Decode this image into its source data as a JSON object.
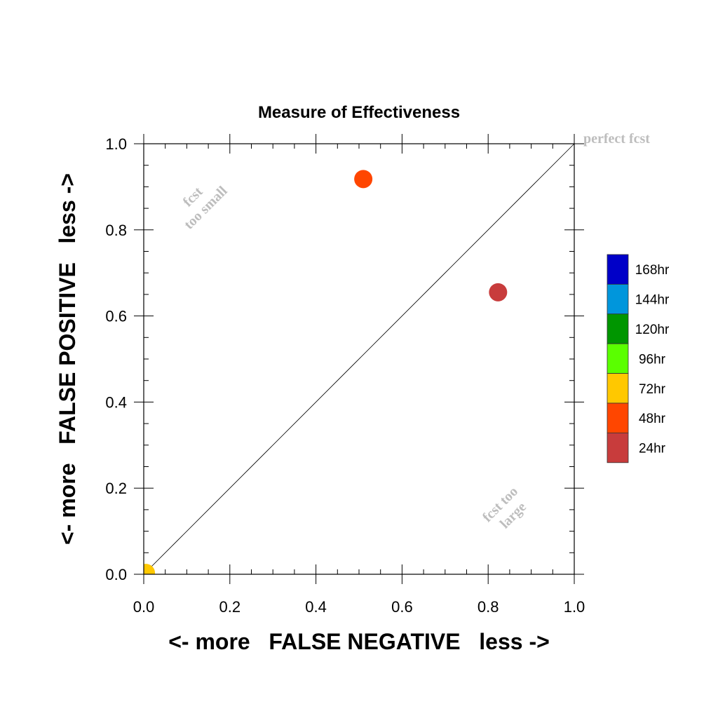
{
  "chart_data": {
    "type": "scatter",
    "title": "Measure of Effectiveness",
    "xlabel": "<- more   FALSE NEGATIVE   less ->",
    "ylabel": "<- more   FALSE POSITIVE   less ->",
    "xlim": [
      0.0,
      1.0
    ],
    "ylim": [
      0.0,
      1.0
    ],
    "xticks": [
      "0.0",
      "0.2",
      "0.4",
      "0.6",
      "0.8",
      "1.0"
    ],
    "yticks": [
      "0.0",
      "0.2",
      "0.4",
      "0.6",
      "0.8",
      "1.0"
    ],
    "grid": false,
    "diagonal_line": true,
    "annotations": {
      "perfect": "perfect fcst",
      "too_small_1": "fcst",
      "too_small_2": "too small",
      "too_large_1": "fcst too",
      "too_large_2": "large"
    },
    "legend": {
      "placement": "right",
      "entries": [
        {
          "label": "168hr",
          "color": "#0000c8"
        },
        {
          "label": "144hr",
          "color": "#0096dc"
        },
        {
          "label": "120hr",
          "color": "#009600"
        },
        {
          "label": "96hr",
          "color": "#5aff00"
        },
        {
          "label": "72hr",
          "color": "#ffc800"
        },
        {
          "label": "48hr",
          "color": "#ff4600"
        },
        {
          "label": "24hr",
          "color": "#c83c3c"
        }
      ]
    },
    "points": [
      {
        "series": "24hr",
        "x": 0.823,
        "y": 0.655,
        "color": "#c83c3c"
      },
      {
        "series": "48hr",
        "x": 0.51,
        "y": 0.918,
        "color": "#ff4600"
      },
      {
        "series": "72hr",
        "x": 0.005,
        "y": 0.003,
        "color": "#ffc800"
      }
    ]
  }
}
